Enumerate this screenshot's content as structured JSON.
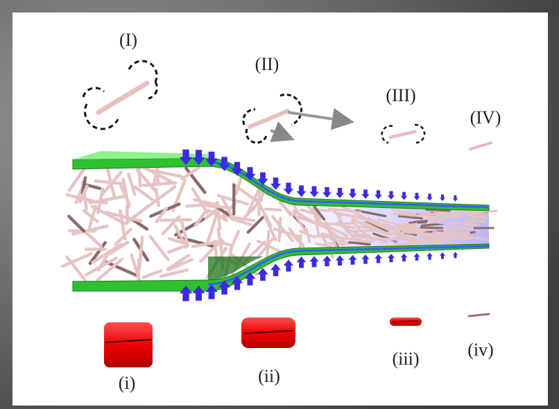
{
  "flow_stages": {
    "labels": [
      "(I)",
      "(II)",
      "(III)",
      "(IV)"
    ]
  },
  "cross_sections": {
    "labels": [
      "(i)",
      "(ii)",
      "(iii)",
      "(iv)"
    ]
  }
}
